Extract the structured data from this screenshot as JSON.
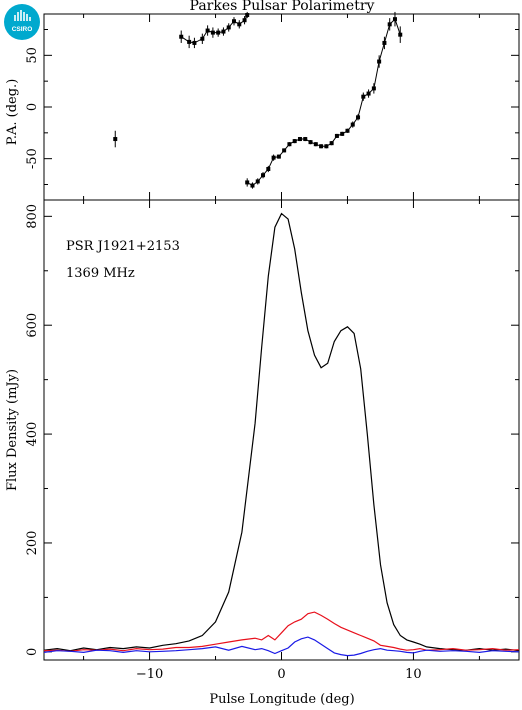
{
  "logo": {
    "text": "CSIRO",
    "color": "#00a9ce"
  },
  "chart_data": [
    {
      "type": "scatter",
      "panel": "top",
      "title": "Parkes Pulsar Polarimetry",
      "ylabel": "P.A. (deg.)",
      "xlim": [
        -18,
        18
      ],
      "ylim": [
        -90,
        90
      ],
      "yticks": [
        -50,
        0,
        50
      ],
      "series": [
        {
          "color": "#000000",
          "x": [
            -12.6,
            -7.6,
            -7.0,
            -6.6,
            -6.0,
            -5.6,
            -5.2,
            -4.8,
            -4.4,
            -4.0,
            -3.6,
            -3.2,
            -2.8,
            -2.6
          ],
          "values": [
            -31,
            68,
            63,
            62,
            66,
            74,
            72,
            72,
            73,
            77,
            83,
            80,
            84,
            89
          ],
          "errors": [
            8,
            6,
            6,
            5,
            5,
            5,
            5,
            4,
            4,
            4,
            4,
            4,
            4,
            3
          ]
        },
        {
          "color": "#000000",
          "x": [
            -2.6,
            -2.2,
            -1.8,
            -1.4,
            -1.0,
            -0.6,
            -0.2,
            0.2,
            0.6,
            1.0,
            1.4,
            1.8,
            2.2,
            2.6,
            3.0,
            3.4,
            3.8,
            4.2,
            4.6,
            5.0,
            5.4,
            5.8,
            6.2,
            6.6,
            7.0,
            7.4,
            7.8,
            8.2,
            8.6,
            9.0
          ],
          "values": [
            -73,
            -76,
            -72,
            -66,
            -60,
            -49,
            -48,
            -42,
            -36,
            -33,
            -31,
            -31,
            -34,
            -36,
            -38,
            -38,
            -35,
            -28,
            -26,
            -23,
            -17,
            -10,
            10,
            13,
            18,
            44,
            62,
            80,
            85,
            70
          ],
          "errors": [
            4,
            3,
            3,
            3,
            3,
            3,
            2,
            2,
            2,
            2,
            2,
            2,
            2,
            2,
            2,
            2,
            2,
            2,
            2,
            2,
            3,
            3,
            4,
            4,
            5,
            6,
            6,
            6,
            7,
            8
          ]
        }
      ]
    },
    {
      "type": "line",
      "panel": "bottom",
      "title": "",
      "xlabel": "Pulse Longitude (deg)",
      "ylabel": "Flux Density (mJy)",
      "xlim": [
        -18,
        18
      ],
      "ylim": [
        -15,
        830
      ],
      "xticks": [
        -10,
        0,
        10
      ],
      "yticks": [
        0,
        200,
        400,
        600,
        800
      ],
      "annotations": [
        "PSR J1921+2153",
        "1369 MHz"
      ],
      "x": [
        -18,
        -17,
        -16,
        -15,
        -14,
        -13,
        -12,
        -11,
        -10,
        -9,
        -8,
        -7,
        -6,
        -5,
        -4,
        -3,
        -2,
        -1.5,
        -1,
        -0.5,
        0,
        0.5,
        1,
        1.5,
        2,
        2.5,
        3,
        3.5,
        4,
        4.5,
        5,
        5.5,
        6,
        6.5,
        7,
        7.5,
        8,
        8.5,
        9,
        9.5,
        10,
        10.5,
        11,
        12,
        13,
        14,
        15,
        16,
        17,
        18
      ],
      "series": [
        {
          "color": "#000000",
          "values": [
            3,
            6,
            2,
            7,
            4,
            8,
            6,
            9,
            7,
            12,
            15,
            20,
            30,
            55,
            110,
            220,
            420,
            560,
            690,
            780,
            805,
            795,
            740,
            660,
            590,
            545,
            522,
            530,
            570,
            590,
            597,
            585,
            520,
            400,
            270,
            160,
            90,
            50,
            30,
            22,
            18,
            14,
            9,
            6,
            4,
            3,
            6,
            3,
            5,
            2
          ]
        },
        {
          "color": "#e8101c",
          "values": [
            2,
            3,
            1,
            4,
            3,
            5,
            2,
            6,
            4,
            5,
            8,
            8,
            10,
            14,
            18,
            22,
            25,
            22,
            30,
            22,
            35,
            48,
            55,
            60,
            70,
            73,
            67,
            60,
            52,
            45,
            40,
            35,
            30,
            25,
            20,
            12,
            10,
            8,
            5,
            3,
            4,
            6,
            3,
            4,
            6,
            3,
            4,
            6,
            3,
            4
          ]
        },
        {
          "color": "#1a1ae6",
          "values": [
            -1,
            2,
            1,
            -1,
            3,
            2,
            -1,
            2,
            0,
            1,
            2,
            4,
            6,
            9,
            3,
            10,
            4,
            6,
            2,
            -3,
            2,
            7,
            18,
            24,
            27,
            22,
            14,
            6,
            -2,
            -5,
            -7,
            -6,
            -3,
            1,
            4,
            6,
            3,
            2,
            1,
            -1,
            -2,
            1,
            3,
            1,
            2,
            1,
            -1,
            2,
            1,
            0
          ]
        }
      ]
    }
  ]
}
